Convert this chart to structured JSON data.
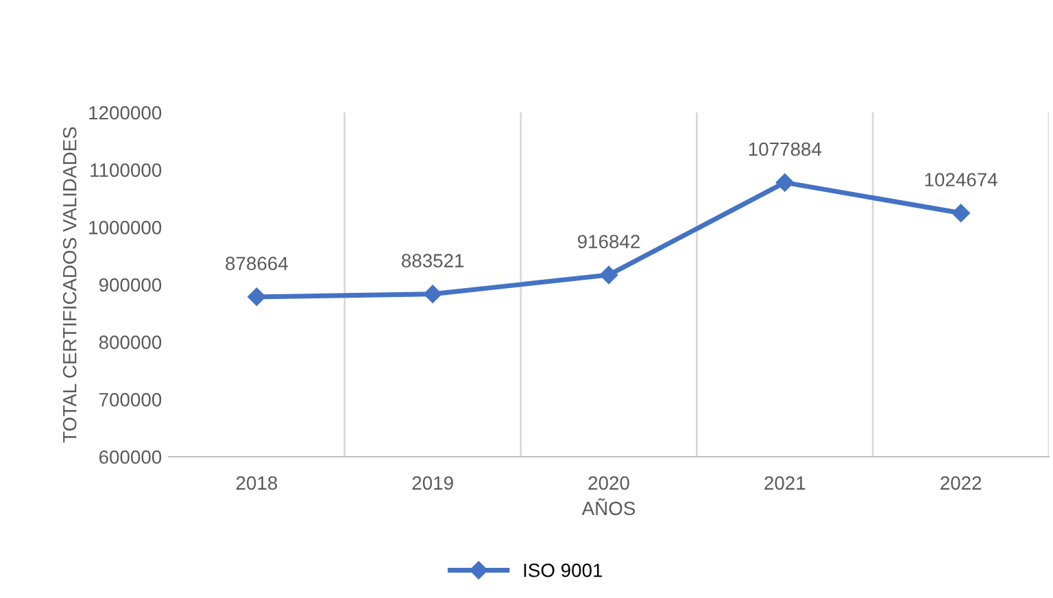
{
  "chart_data": {
    "type": "line",
    "xlabel": "AÑOS",
    "ylabel": "TOTAL CERTIFICADOS VALIDADES",
    "categories": [
      "2018",
      "2019",
      "2020",
      "2021",
      "2022"
    ],
    "series": [
      {
        "name": "ISO 9001",
        "color": "#4472c4",
        "values": [
          878664,
          883521,
          916842,
          1077884,
          1024674
        ]
      }
    ],
    "ylim": [
      600000,
      1200000
    ],
    "yticks": [
      600000,
      700000,
      800000,
      900000,
      1000000,
      1100000,
      1200000
    ],
    "grid": "x",
    "legend": "bottom",
    "marker": "diamond",
    "line_style": "solid",
    "data_labels": true
  }
}
